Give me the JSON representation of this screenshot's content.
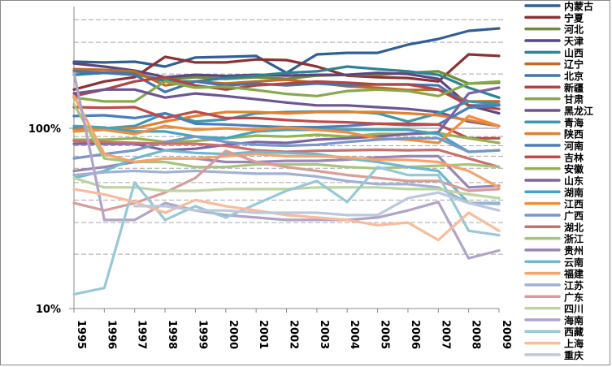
{
  "chart_data": {
    "type": "line",
    "title": "",
    "xlabel": "",
    "ylabel": "",
    "yscale": "log",
    "ylim": [
      10,
      475
    ],
    "yticks": [
      {
        "value": 10,
        "label": "10%"
      },
      {
        "value": 100,
        "label": "100%"
      }
    ],
    "grid": "dashed minor gridlines",
    "legend_position": "right",
    "categories": [
      "1995",
      "1996",
      "1997",
      "1998",
      "1999",
      "2000",
      "2001",
      "2002",
      "2003",
      "2004",
      "2005",
      "2006",
      "2007",
      "2008",
      "2009"
    ],
    "series": [
      {
        "name": "内蒙古",
        "color": "#305f94",
        "values": [
          234,
          232,
          234,
          220,
          247,
          249,
          252,
          203,
          257,
          262,
          262,
          291,
          313,
          347,
          358
        ]
      },
      {
        "name": "宁夏",
        "color": "#8c3232",
        "values": [
          164,
          182,
          192,
          249,
          232,
          232,
          241,
          239,
          220,
          196,
          192,
          190,
          182,
          257,
          252
        ]
      },
      {
        "name": "河北",
        "color": "#6e8c3a",
        "values": [
          207,
          203,
          198,
          186,
          192,
          188,
          192,
          188,
          196,
          198,
          198,
          203,
          207,
          177,
          179
        ]
      },
      {
        "name": "天津",
        "color": "#5c4580",
        "values": [
          229,
          220,
          209,
          192,
          198,
          195,
          198,
          196,
          198,
          198,
          203,
          200,
          188,
          134,
          121
        ]
      },
      {
        "name": "山西",
        "color": "#2e8296",
        "values": [
          198,
          203,
          203,
          182,
          182,
          190,
          196,
          203,
          207,
          220,
          213,
          207,
          198,
          168,
          148
        ]
      },
      {
        "name": "辽宁",
        "color": "#c06b26",
        "values": [
          213,
          211,
          207,
          173,
          182,
          177,
          182,
          186,
          179,
          171,
          168,
          163,
          164,
          141,
          141
        ]
      },
      {
        "name": "北京",
        "color": "#4575b0",
        "values": [
          207,
          203,
          198,
          159,
          182,
          173,
          177,
          173,
          177,
          173,
          175,
          175,
          173,
          134,
          134
        ]
      },
      {
        "name": "新疆",
        "color": "#b04545",
        "values": [
          151,
          164,
          182,
          192,
          173,
          164,
          173,
          177,
          182,
          179,
          175,
          175,
          164,
          134,
          128
        ]
      },
      {
        "name": "甘肃",
        "color": "#88a84a",
        "values": [
          148,
          141,
          141,
          182,
          168,
          170,
          163,
          155,
          151,
          161,
          164,
          161,
          151,
          177,
          182
        ]
      },
      {
        "name": "黑龙江",
        "color": "#6d5494",
        "values": [
          156,
          164,
          164,
          148,
          156,
          151,
          145,
          139,
          134,
          134,
          131,
          128,
          123,
          109,
          103
        ]
      },
      {
        "name": "青海",
        "color": "#3c98ae",
        "values": [
          100,
          100,
          103,
          121,
          109,
          112,
          121,
          123,
          124,
          124,
          121,
          109,
          121,
          141,
          136
        ]
      },
      {
        "name": "陕西",
        "color": "#e08030",
        "values": [
          98,
          100,
          100,
          109,
          117,
          123,
          123,
          121,
          123,
          123,
          123,
          121,
          118,
          111,
          103
        ]
      },
      {
        "name": "河南",
        "color": "#4a7ec0",
        "values": [
          117,
          118,
          114,
          121,
          106,
          105,
          103,
          101.5,
          101.5,
          103,
          106,
          104,
          105,
          130,
          134
        ]
      },
      {
        "name": "吉林",
        "color": "#c04a48",
        "values": [
          131,
          130,
          131,
          114,
          124,
          114,
          114,
          111,
          109,
          108,
          106,
          106,
          105,
          88,
          88
        ]
      },
      {
        "name": "安徽",
        "color": "#92b450",
        "values": [
          86.5,
          86.5,
          88,
          84,
          85,
          88,
          91,
          90,
          92,
          90,
          93,
          93,
          94,
          88,
          83
        ]
      },
      {
        "name": "山东",
        "color": "#7c64a4",
        "values": [
          82,
          82,
          82,
          75.5,
          77,
          81,
          84,
          83,
          86.5,
          88,
          90,
          93,
          95,
          156,
          168
        ]
      },
      {
        "name": "湖南",
        "color": "#44a4c0",
        "values": [
          103,
          101,
          96,
          96,
          90,
          88,
          96,
          98,
          98,
          98,
          98,
          98,
          93,
          74,
          75.5
        ]
      },
      {
        "name": "江西",
        "color": "#f08c3c",
        "values": [
          96,
          98,
          93,
          103,
          98,
          100,
          98,
          101,
          98,
          95,
          88,
          86.5,
          83,
          117,
          103
        ]
      },
      {
        "name": "广西",
        "color": "#7896c8",
        "values": [
          68,
          72,
          75.5,
          84,
          90,
          84,
          81,
          80,
          81,
          84,
          86.5,
          88,
          88,
          74,
          75.5
        ]
      },
      {
        "name": "湖北",
        "color": "#cc6e6c",
        "values": [
          85,
          84,
          83,
          82,
          82,
          80,
          75.5,
          74,
          75,
          75.5,
          76,
          75.5,
          76,
          68,
          61
        ]
      },
      {
        "name": "浙江",
        "color": "#a8c47c",
        "values": [
          136,
          68,
          65,
          65,
          61,
          61,
          63,
          63,
          63,
          61,
          60,
          61,
          62,
          63,
          61
        ]
      },
      {
        "name": "贵州",
        "color": "#9a86b6",
        "values": [
          58,
          61,
          65,
          68,
          68,
          65,
          65,
          66,
          66,
          67,
          69,
          70,
          70,
          47,
          48
        ]
      },
      {
        "name": "云南",
        "color": "#70b8cc",
        "values": [
          53,
          58,
          68,
          75.5,
          73,
          72,
          74,
          73,
          72,
          68,
          65,
          61,
          58,
          38.5,
          38.5
        ]
      },
      {
        "name": "福建",
        "color": "#f8a26c",
        "values": [
          151,
          72,
          65,
          68,
          68,
          70,
          72,
          70,
          70,
          69,
          67,
          66.7,
          65,
          58,
          47
        ]
      },
      {
        "name": "江苏",
        "color": "#9fb2d6",
        "values": [
          55,
          57,
          58,
          57,
          58,
          57,
          56,
          56,
          54,
          51,
          49,
          49,
          47,
          38.5,
          38
        ]
      },
      {
        "name": "广东",
        "color": "#d89c9a",
        "values": [
          38.5,
          35,
          38.5,
          44,
          53,
          75,
          65,
          61,
          58,
          55,
          53,
          51,
          51,
          45,
          46
        ]
      },
      {
        "name": "四川",
        "color": "#bcd4a0",
        "values": [
          53,
          47,
          47,
          45,
          45,
          46,
          46,
          46,
          47,
          47,
          47,
          46,
          46,
          43,
          41
        ]
      },
      {
        "name": "海南",
        "color": "#b0a4c8",
        "values": [
          203,
          31,
          31,
          38.5,
          35,
          33,
          32,
          31,
          31,
          31,
          32,
          35,
          39,
          19,
          21
        ]
      },
      {
        "name": "西藏",
        "color": "#98c8d8",
        "values": [
          12,
          13,
          50,
          31,
          37,
          32,
          38,
          45,
          51,
          39,
          61,
          55,
          55,
          27,
          25.5
        ]
      },
      {
        "name": "上海",
        "color": "#f8bc9c",
        "values": [
          46,
          43,
          39,
          34,
          40,
          37,
          35,
          33,
          32,
          31,
          29,
          30,
          24,
          34,
          27
        ]
      },
      {
        "name": "重庆",
        "color": "#bcc8dc",
        "values": [
          null,
          null,
          37,
          37,
          35,
          35,
          34,
          34,
          34,
          33,
          33,
          41,
          44,
          38.5,
          35
        ]
      }
    ]
  }
}
